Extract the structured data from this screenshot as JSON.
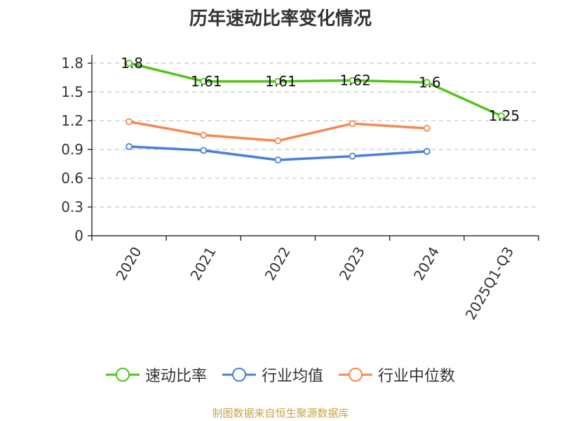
{
  "source_note": "制图数据来自恒生聚源数据库",
  "chart_data": {
    "type": "line",
    "title": "历年速动比率变化情况",
    "categories": [
      "2020",
      "2021",
      "2022",
      "2023",
      "2024",
      "2025Q1-Q3"
    ],
    "ylim": [
      0,
      1.8
    ],
    "yticks": [
      "0",
      "0.3",
      "0.6",
      "0.9",
      "1.2",
      "1.5",
      "1.8"
    ],
    "grid": true,
    "legend_position": "bottom",
    "series": [
      {
        "name": "速动比率",
        "color": "#52c41a",
        "values": [
          1.8,
          1.61,
          1.61,
          1.62,
          1.6,
          1.25
        ],
        "labels": [
          "1.8",
          "1.61",
          "1.61",
          "1.62",
          "1.6",
          "1.25"
        ]
      },
      {
        "name": "行业均值",
        "color": "#4a7fd9",
        "values": [
          0.93,
          0.89,
          0.79,
          0.83,
          0.88,
          null
        ]
      },
      {
        "name": "行业中位数",
        "color": "#f5894f",
        "values": [
          1.19,
          1.05,
          0.99,
          1.17,
          1.12,
          null
        ]
      }
    ]
  }
}
